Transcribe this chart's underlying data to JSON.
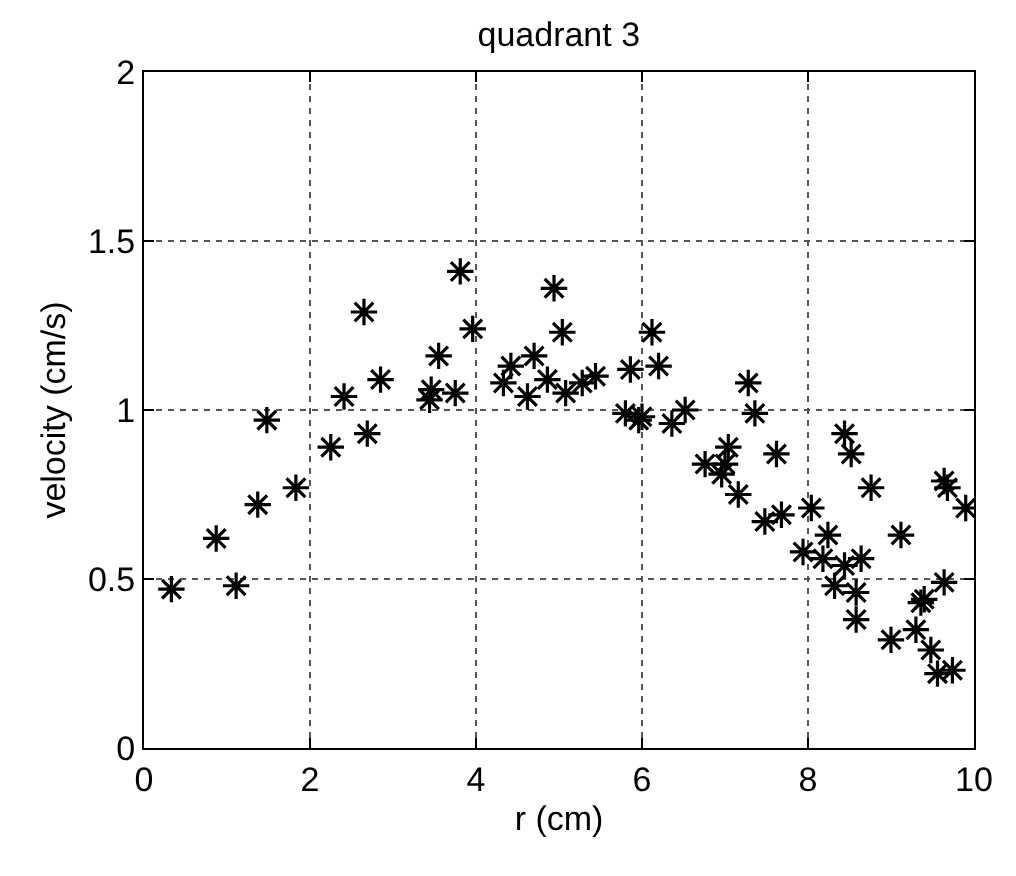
{
  "chart_data": {
    "type": "scatter",
    "title": "quadrant 3",
    "xlabel": "r (cm)",
    "ylabel": "velocity (cm/s)",
    "x": [
      0.33,
      0.87,
      1.11,
      1.37,
      1.48,
      1.83,
      2.25,
      2.41,
      2.65,
      2.69,
      2.85,
      3.44,
      3.46,
      3.55,
      3.75,
      3.81,
      3.96,
      4.33,
      4.42,
      4.62,
      4.7,
      4.86,
      4.94,
      5.04,
      5.08,
      5.28,
      5.44,
      5.86,
      6.12,
      6.2,
      5.8,
      6.0,
      5.96,
      6.36,
      6.52,
      6.76,
      7.04,
      7.0,
      6.96,
      7.16,
      7.28,
      7.36,
      7.62,
      7.48,
      7.68,
      8.04,
      7.94,
      8.24,
      8.18,
      8.44,
      8.52,
      8.44,
      8.64,
      8.32,
      8.58,
      8.58,
      8.76,
      9.12,
      9.0,
      9.36,
      9.4,
      9.3,
      9.64,
      9.48,
      9.56,
      9.74,
      9.64,
      9.68,
      9.9
    ],
    "series": [
      {
        "color": "#000000",
        "values": [
          0.47,
          0.62,
          0.48,
          0.72,
          0.97,
          0.77,
          0.89,
          1.04,
          1.29,
          0.93,
          1.09,
          1.03,
          1.06,
          1.16,
          1.05,
          1.41,
          1.24,
          1.08,
          1.13,
          1.04,
          1.16,
          1.09,
          1.36,
          1.23,
          1.05,
          1.08,
          1.1,
          1.12,
          1.23,
          1.13,
          0.99,
          0.98,
          0.97,
          0.96,
          1.0,
          0.84,
          0.89,
          0.84,
          0.81,
          0.75,
          1.08,
          0.99,
          0.87,
          0.67,
          0.69,
          0.71,
          0.58,
          0.63,
          0.56,
          0.93,
          0.87,
          0.54,
          0.56,
          0.48,
          0.46,
          0.38,
          0.77,
          0.63,
          0.32,
          0.43,
          0.44,
          0.35,
          0.49,
          0.29,
          0.22,
          0.23,
          0.79,
          0.77,
          0.71
        ]
      }
    ],
    "xlim": [
      0,
      10
    ],
    "xticks": [
      0,
      2,
      4,
      6,
      8,
      10
    ],
    "ylim": [
      0,
      2
    ],
    "yticks": [
      0,
      0.5,
      1,
      1.5,
      2
    ],
    "grid": true,
    "marker": "cross",
    "legend": false
  }
}
